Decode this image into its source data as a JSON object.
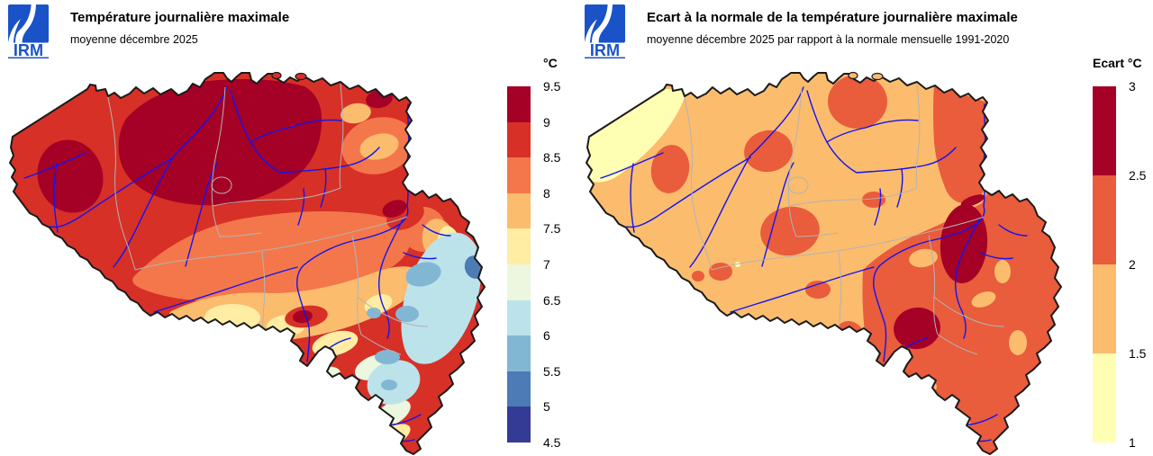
{
  "panels": [
    {
      "logo": "IRM",
      "title": "Température journalière maximale",
      "subtitle": "moyenne décembre 2025",
      "colorbar": {
        "header": "°C",
        "ticks": [
          "9.5",
          "9",
          "8.5",
          "8",
          "7.5",
          "7",
          "6.5",
          "6",
          "5.5",
          "5",
          "4.5"
        ],
        "colors": [
          "#a50026",
          "#d73027",
          "#f4774b",
          "#fbbc6e",
          "#ffeda4",
          "#ebf7df",
          "#bce2ea",
          "#82b7d4",
          "#4d7bb6",
          "#343b94"
        ]
      }
    },
    {
      "logo": "IRM",
      "title": "Ecart à la normale de la température journalière maximale",
      "subtitle": "moyenne décembre 2025 par rapport à la normale mensuelle 1991-2020",
      "colorbar": {
        "header": "Ecart °C",
        "ticks": [
          "3",
          "2.5",
          "2",
          "1.5",
          "1"
        ],
        "colors": [
          "#a50026",
          "#e95c3c",
          "#fbbc6e",
          "#ffffb3"
        ]
      }
    }
  ],
  "map_style": {
    "river": "#1414f0",
    "province": "#b3b3b3",
    "border": "#1a1a1a",
    "logo_blue": "#1a53c8",
    "background": "#ffffff"
  },
  "chart_data": [
    {
      "type": "choropleth-map",
      "region": "Belgique",
      "title": "Température journalière maximale",
      "subtitle": "moyenne décembre 2025",
      "unit": "°C",
      "legend_position": "right",
      "legend_ticks": [
        9.5,
        9,
        8.5,
        8,
        7.5,
        7,
        6.5,
        6,
        5.5,
        5,
        4.5
      ],
      "legend_colors": [
        "#a50026",
        "#d73027",
        "#f4774b",
        "#fbbc6e",
        "#ffeda4",
        "#ebf7df",
        "#bce2ea",
        "#82b7d4",
        "#4d7bb6",
        "#343b94"
      ],
      "value_range": [
        4.5,
        9.5
      ],
      "pattern": "9 à 9.5 °C sur le nord et le centre de la Flandre et un noyau en Flandre occidentale; 8.5 à 9 °C sur le reste du nord et l'ouest; 8 à 8.5 °C en bande centrale (Hainaut–Hesbaye–Liège); 7 à 8 °C sur l'Entre-Sambre-et-Meuse et la Famenne; 5 à 6.5 °C sur les Hautes Fagnes et l'Ardenne orientale (minimum ~5 °C à la frontière est); vallées des rivières en bleu, limites provinciales en gris"
    },
    {
      "type": "choropleth-map",
      "region": "Belgique",
      "title": "Ecart à la normale de la température journalière maximale",
      "subtitle": "moyenne décembre 2025 par rapport à la normale mensuelle 1991-2020",
      "unit": "°C",
      "legend_position": "right",
      "legend_ticks": [
        3,
        2.5,
        2,
        1.5,
        1
      ],
      "legend_colors": [
        "#a50026",
        "#e95c3c",
        "#fbbc6e",
        "#ffffb3"
      ],
      "value_range": [
        1,
        3
      ],
      "pattern": "+1.5 à +2 °C sur la majeure partie de la Flandre et du centre; +2 à +2.5 °C sur l'est et le sud (Ardenne, Gaume) et en taches au centre-nord; +2.5 à +3 °C en deux noyaux sur l'est (région de Liège/Hautes Fagnes) et le centre de l'Ardenne; +1 à +1.5 °C le long de la côte"
    }
  ]
}
